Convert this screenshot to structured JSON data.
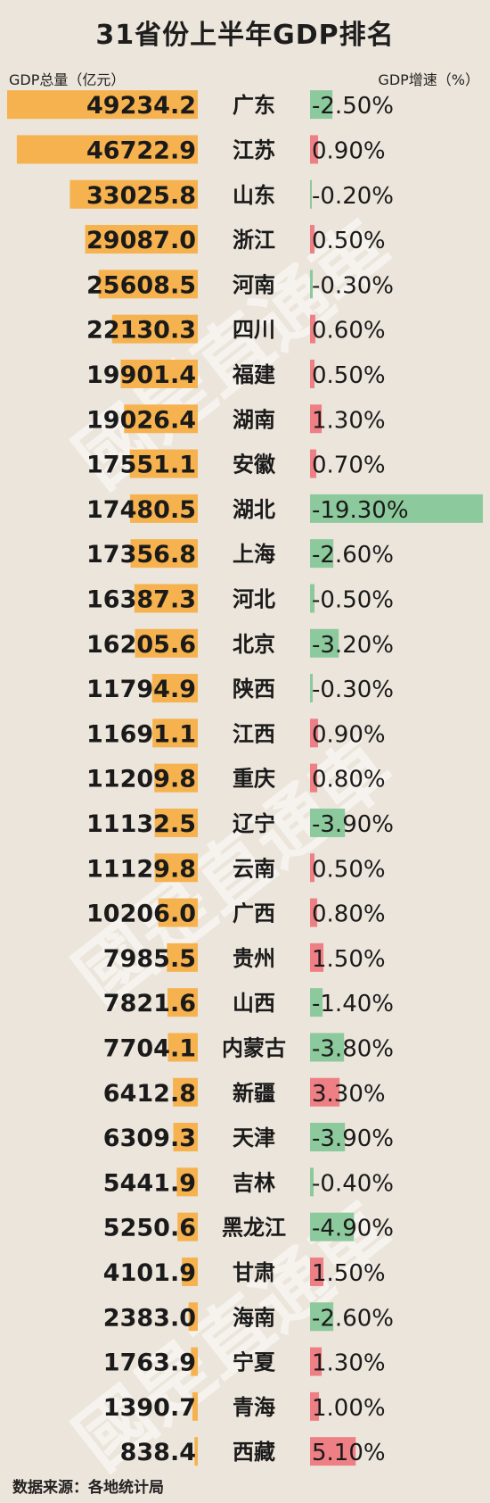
{
  "chart_data": {
    "type": "bar",
    "title": "31省份上半年GDP排名",
    "left_axis_label": "GDP总量（亿元）",
    "right_axis_label": "GDP增速（%）",
    "categories": [
      "广东",
      "江苏",
      "山东",
      "浙江",
      "河南",
      "四川",
      "福建",
      "湖南",
      "安徽",
      "湖北",
      "上海",
      "河北",
      "北京",
      "陕西",
      "江西",
      "重庆",
      "辽宁",
      "云南",
      "广西",
      "贵州",
      "山西",
      "内蒙古",
      "新疆",
      "天津",
      "吉林",
      "黑龙江",
      "甘肃",
      "海南",
      "宁夏",
      "青海",
      "西藏"
    ],
    "series": [
      {
        "name": "GDP总量（亿元）",
        "values": [
          49234.2,
          46722.9,
          33025.8,
          29087.0,
          25608.5,
          22130.3,
          19901.4,
          19026.4,
          17551.1,
          17480.5,
          17356.8,
          16387.3,
          16205.6,
          11794.9,
          11691.1,
          11209.8,
          11132.5,
          11129.8,
          10206.0,
          7985.5,
          7821.6,
          7704.1,
          6412.8,
          6309.3,
          5441.9,
          5250.6,
          4101.9,
          2383.0,
          1763.9,
          1390.7,
          838.4
        ],
        "labels": [
          "49234.2",
          "46722.9",
          "33025.8",
          "29087.0",
          "25608.5",
          "22130.3",
          "19901.4",
          "19026.4",
          "17551.1",
          "17480.5",
          "17356.8",
          "16387.3",
          "16205.6",
          "11794.9",
          "11691.1",
          "11209.8",
          "11132.5",
          "11129.8",
          "10206.0",
          "7985.5",
          "7821.6",
          "7704.1",
          "6412.8",
          "6309.3",
          "5441.9",
          "5250.6",
          "4101.9",
          "2383.0",
          "1763.9",
          "1390.7",
          "838.4"
        ]
      },
      {
        "name": "GDP增速（%）",
        "values": [
          -2.5,
          0.9,
          -0.2,
          0.5,
          -0.3,
          0.6,
          0.5,
          1.3,
          0.7,
          -19.3,
          -2.6,
          -0.5,
          -3.2,
          -0.3,
          0.9,
          0.8,
          -3.9,
          0.5,
          0.8,
          1.5,
          -1.4,
          -3.8,
          3.3,
          -3.9,
          -0.4,
          -4.9,
          1.5,
          -2.6,
          1.3,
          1.0,
          5.1
        ],
        "labels": [
          "-2.50%",
          "0.90%",
          "-0.20%",
          "0.50%",
          "-0.30%",
          "0.60%",
          "0.50%",
          "1.30%",
          "0.70%",
          "-19.30%",
          "-2.60%",
          "-0.50%",
          "-3.20%",
          "-0.30%",
          "0.90%",
          "0.80%",
          "-3.90%",
          "0.50%",
          "0.80%",
          "1.50%",
          "-1.40%",
          "-3.80%",
          "3.30%",
          "-3.90%",
          "-0.40%",
          "-4.90%",
          "1.50%",
          "-2.60%",
          "1.30%",
          "1.00%",
          "5.10%"
        ]
      }
    ],
    "colors": {
      "gdp_bar": "#f6b24e",
      "growth_negative": "#8cc99c",
      "growth_positive": "#ee7f85",
      "background": "#ece5db"
    },
    "source": "数据来源：各地统计局"
  },
  "watermark": "國是直通車"
}
